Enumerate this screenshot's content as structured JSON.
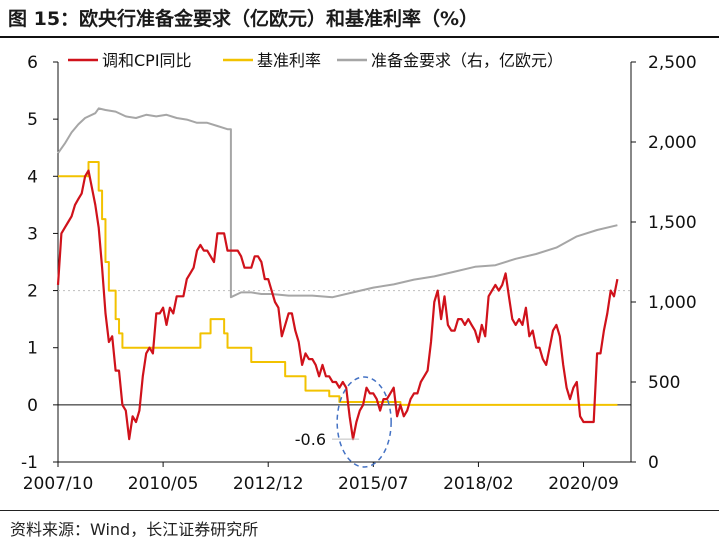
{
  "title": "图 15：欧央行准备金要求（亿欧元）和基准利率（%）",
  "source": "资料来源：Wind，长江证券研究所",
  "chart_data": {
    "type": "line",
    "left_axis": {
      "ticks": [
        "6",
        "5",
        "4",
        "3",
        "2",
        "1",
        "0",
        "-1"
      ],
      "range": [
        -1,
        6
      ]
    },
    "right_axis": {
      "ticks": [
        "2,500",
        "2,000",
        "1,500",
        "1,000",
        "500",
        "0"
      ],
      "range": [
        0,
        2500
      ]
    },
    "x_ticks": [
      "2007/10",
      "2010/05",
      "2012/12",
      "2015/07",
      "2018/02",
      "2020/09"
    ],
    "x_range": [
      "2007/10",
      "2021/11"
    ],
    "legend_position": "top",
    "annotation": {
      "label": "-0.6",
      "date": "2015/04",
      "value": -0.6
    },
    "reference_line_y": 2,
    "series": [
      {
        "name": "调和CPI同比",
        "axis": "left",
        "color": "#d0121b",
        "points": [
          [
            "2007/10",
            2.1
          ],
          [
            "2007/11",
            3.0
          ],
          [
            "2007/12",
            3.1
          ],
          [
            "2008/01",
            3.2
          ],
          [
            "2008/02",
            3.3
          ],
          [
            "2008/03",
            3.5
          ],
          [
            "2008/04",
            3.6
          ],
          [
            "2008/05",
            3.7
          ],
          [
            "2008/06",
            4.0
          ],
          [
            "2008/07",
            4.1
          ],
          [
            "2008/08",
            3.8
          ],
          [
            "2008/09",
            3.5
          ],
          [
            "2008/10",
            3.1
          ],
          [
            "2008/11",
            2.4
          ],
          [
            "2008/12",
            1.6
          ],
          [
            "2009/01",
            1.1
          ],
          [
            "2009/02",
            1.2
          ],
          [
            "2009/03",
            0.6
          ],
          [
            "2009/04",
            0.6
          ],
          [
            "2009/05",
            0.0
          ],
          [
            "2009/06",
            -0.1
          ],
          [
            "2009/07",
            -0.6
          ],
          [
            "2009/08",
            -0.2
          ],
          [
            "2009/09",
            -0.3
          ],
          [
            "2009/10",
            -0.1
          ],
          [
            "2009/11",
            0.5
          ],
          [
            "2009/12",
            0.9
          ],
          [
            "2010/01",
            1.0
          ],
          [
            "2010/02",
            0.9
          ],
          [
            "2010/03",
            1.6
          ],
          [
            "2010/04",
            1.6
          ],
          [
            "2010/05",
            1.7
          ],
          [
            "2010/06",
            1.4
          ],
          [
            "2010/07",
            1.7
          ],
          [
            "2010/08",
            1.6
          ],
          [
            "2010/09",
            1.9
          ],
          [
            "2010/10",
            1.9
          ],
          [
            "2010/11",
            1.9
          ],
          [
            "2010/12",
            2.2
          ],
          [
            "2011/01",
            2.3
          ],
          [
            "2011/02",
            2.4
          ],
          [
            "2011/03",
            2.7
          ],
          [
            "2011/04",
            2.8
          ],
          [
            "2011/05",
            2.7
          ],
          [
            "2011/06",
            2.7
          ],
          [
            "2011/07",
            2.6
          ],
          [
            "2011/08",
            2.5
          ],
          [
            "2011/09",
            3.0
          ],
          [
            "2011/10",
            3.0
          ],
          [
            "2011/11",
            3.0
          ],
          [
            "2011/12",
            2.7
          ],
          [
            "2012/01",
            2.7
          ],
          [
            "2012/02",
            2.7
          ],
          [
            "2012/03",
            2.7
          ],
          [
            "2012/04",
            2.6
          ],
          [
            "2012/05",
            2.4
          ],
          [
            "2012/06",
            2.4
          ],
          [
            "2012/07",
            2.4
          ],
          [
            "2012/08",
            2.6
          ],
          [
            "2012/09",
            2.6
          ],
          [
            "2012/10",
            2.5
          ],
          [
            "2012/11",
            2.2
          ],
          [
            "2012/12",
            2.2
          ],
          [
            "2013/01",
            2.0
          ],
          [
            "2013/02",
            1.8
          ],
          [
            "2013/03",
            1.7
          ],
          [
            "2013/04",
            1.2
          ],
          [
            "2013/05",
            1.4
          ],
          [
            "2013/06",
            1.6
          ],
          [
            "2013/07",
            1.6
          ],
          [
            "2013/08",
            1.3
          ],
          [
            "2013/09",
            1.1
          ],
          [
            "2013/10",
            0.7
          ],
          [
            "2013/11",
            0.9
          ],
          [
            "2013/12",
            0.8
          ],
          [
            "2014/01",
            0.8
          ],
          [
            "2014/02",
            0.7
          ],
          [
            "2014/03",
            0.5
          ],
          [
            "2014/04",
            0.7
          ],
          [
            "2014/05",
            0.5
          ],
          [
            "2014/06",
            0.5
          ],
          [
            "2014/07",
            0.4
          ],
          [
            "2014/08",
            0.4
          ],
          [
            "2014/09",
            0.3
          ],
          [
            "2014/10",
            0.4
          ],
          [
            "2014/11",
            0.3
          ],
          [
            "2014/12",
            -0.2
          ],
          [
            "2015/01",
            -0.6
          ],
          [
            "2015/02",
            -0.3
          ],
          [
            "2015/03",
            -0.1
          ],
          [
            "2015/04",
            0.0
          ],
          [
            "2015/05",
            0.3
          ],
          [
            "2015/06",
            0.2
          ],
          [
            "2015/07",
            0.2
          ],
          [
            "2015/08",
            0.1
          ],
          [
            "2015/09",
            -0.1
          ],
          [
            "2015/10",
            0.1
          ],
          [
            "2015/11",
            0.1
          ],
          [
            "2015/12",
            0.2
          ],
          [
            "2016/01",
            0.3
          ],
          [
            "2016/02",
            -0.2
          ],
          [
            "2016/03",
            0.0
          ],
          [
            "2016/04",
            -0.2
          ],
          [
            "2016/05",
            -0.1
          ],
          [
            "2016/06",
            0.1
          ],
          [
            "2016/07",
            0.2
          ],
          [
            "2016/08",
            0.2
          ],
          [
            "2016/09",
            0.4
          ],
          [
            "2016/10",
            0.5
          ],
          [
            "2016/11",
            0.6
          ],
          [
            "2016/12",
            1.1
          ],
          [
            "2017/01",
            1.8
          ],
          [
            "2017/02",
            2.0
          ],
          [
            "2017/03",
            1.5
          ],
          [
            "2017/04",
            1.9
          ],
          [
            "2017/05",
            1.4
          ],
          [
            "2017/06",
            1.3
          ],
          [
            "2017/07",
            1.3
          ],
          [
            "2017/08",
            1.5
          ],
          [
            "2017/09",
            1.5
          ],
          [
            "2017/10",
            1.4
          ],
          [
            "2017/11",
            1.5
          ],
          [
            "2017/12",
            1.4
          ],
          [
            "2018/01",
            1.3
          ],
          [
            "2018/02",
            1.1
          ],
          [
            "2018/03",
            1.4
          ],
          [
            "2018/04",
            1.2
          ],
          [
            "2018/05",
            1.9
          ],
          [
            "2018/06",
            2.0
          ],
          [
            "2018/07",
            2.1
          ],
          [
            "2018/08",
            2.0
          ],
          [
            "2018/09",
            2.1
          ],
          [
            "2018/10",
            2.3
          ],
          [
            "2018/11",
            1.9
          ],
          [
            "2018/12",
            1.5
          ],
          [
            "2019/01",
            1.4
          ],
          [
            "2019/02",
            1.5
          ],
          [
            "2019/03",
            1.4
          ],
          [
            "2019/04",
            1.7
          ],
          [
            "2019/05",
            1.2
          ],
          [
            "2019/06",
            1.3
          ],
          [
            "2019/07",
            1.0
          ],
          [
            "2019/08",
            1.0
          ],
          [
            "2019/09",
            0.8
          ],
          [
            "2019/10",
            0.7
          ],
          [
            "2019/11",
            1.0
          ],
          [
            "2019/12",
            1.3
          ],
          [
            "2020/01",
            1.4
          ],
          [
            "2020/02",
            1.2
          ],
          [
            "2020/03",
            0.7
          ],
          [
            "2020/04",
            0.3
          ],
          [
            "2020/05",
            0.1
          ],
          [
            "2020/06",
            0.3
          ],
          [
            "2020/07",
            0.4
          ],
          [
            "2020/08",
            -0.2
          ],
          [
            "2020/09",
            -0.3
          ],
          [
            "2020/10",
            -0.3
          ],
          [
            "2020/11",
            -0.3
          ],
          [
            "2020/12",
            -0.3
          ],
          [
            "2021/01",
            0.9
          ],
          [
            "2021/02",
            0.9
          ],
          [
            "2021/03",
            1.3
          ],
          [
            "2021/04",
            1.6
          ],
          [
            "2021/05",
            2.0
          ],
          [
            "2021/06",
            1.9
          ],
          [
            "2021/07",
            2.2
          ]
        ]
      },
      {
        "name": "基准利率",
        "axis": "left",
        "color": "#f2c200",
        "points": [
          [
            "2007/10",
            4.0
          ],
          [
            "2008/07",
            4.25
          ],
          [
            "2008/10",
            3.75
          ],
          [
            "2008/11",
            3.25
          ],
          [
            "2008/12",
            2.5
          ],
          [
            "2009/01",
            2.0
          ],
          [
            "2009/03",
            1.5
          ],
          [
            "2009/04",
            1.25
          ],
          [
            "2009/05",
            1.0
          ],
          [
            "2011/04",
            1.25
          ],
          [
            "2011/07",
            1.5
          ],
          [
            "2011/11",
            1.25
          ],
          [
            "2011/12",
            1.0
          ],
          [
            "2012/07",
            0.75
          ],
          [
            "2013/05",
            0.5
          ],
          [
            "2013/11",
            0.25
          ],
          [
            "2014/06",
            0.15
          ],
          [
            "2014/09",
            0.05
          ],
          [
            "2016/03",
            0.0
          ],
          [
            "2021/07",
            0.0
          ]
        ]
      },
      {
        "name": "准备金要求（右，亿欧元）",
        "axis": "right",
        "color": "#a6a6a6",
        "points": [
          [
            "2007/10",
            1930
          ],
          [
            "2007/12",
            1990
          ],
          [
            "2008/02",
            2060
          ],
          [
            "2008/04",
            2110
          ],
          [
            "2008/06",
            2150
          ],
          [
            "2008/09",
            2180
          ],
          [
            "2008/10",
            2210
          ],
          [
            "2008/12",
            2200
          ],
          [
            "2009/03",
            2190
          ],
          [
            "2009/06",
            2160
          ],
          [
            "2009/09",
            2150
          ],
          [
            "2009/12",
            2170
          ],
          [
            "2010/03",
            2160
          ],
          [
            "2010/06",
            2170
          ],
          [
            "2010/09",
            2150
          ],
          [
            "2010/12",
            2140
          ],
          [
            "2011/03",
            2120
          ],
          [
            "2011/06",
            2120
          ],
          [
            "2011/09",
            2100
          ],
          [
            "2011/12",
            2080
          ],
          [
            "2012/01",
            2080
          ],
          [
            "2012/01",
            1030
          ],
          [
            "2012/04",
            1060
          ],
          [
            "2012/07",
            1060
          ],
          [
            "2012/10",
            1050
          ],
          [
            "2013/01",
            1050
          ],
          [
            "2013/06",
            1040
          ],
          [
            "2014/01",
            1040
          ],
          [
            "2014/07",
            1030
          ],
          [
            "2015/01",
            1060
          ],
          [
            "2015/07",
            1090
          ],
          [
            "2016/01",
            1110
          ],
          [
            "2016/07",
            1140
          ],
          [
            "2017/01",
            1160
          ],
          [
            "2017/07",
            1190
          ],
          [
            "2018/01",
            1220
          ],
          [
            "2018/07",
            1230
          ],
          [
            "2019/01",
            1270
          ],
          [
            "2019/07",
            1300
          ],
          [
            "2020/01",
            1340
          ],
          [
            "2020/07",
            1410
          ],
          [
            "2021/01",
            1450
          ],
          [
            "2021/07",
            1480
          ]
        ]
      }
    ]
  }
}
